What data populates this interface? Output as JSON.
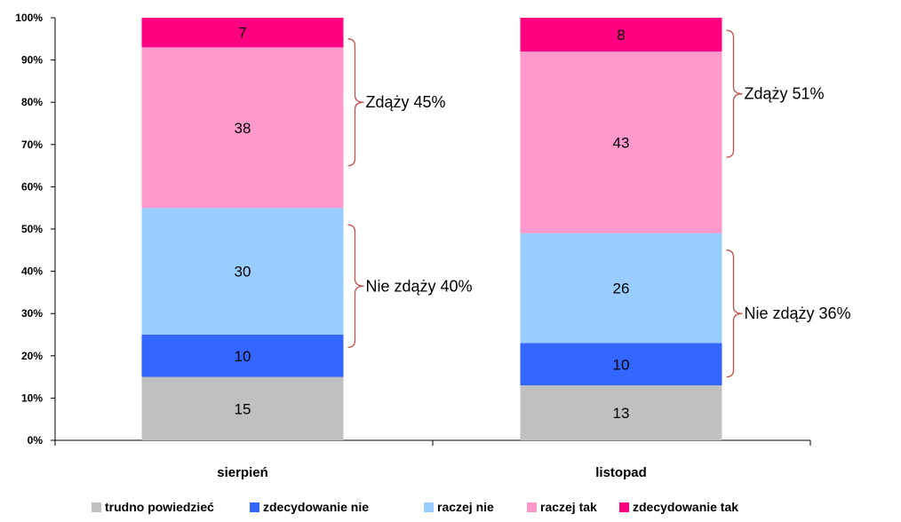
{
  "chart_data": {
    "type": "bar",
    "stacked": true,
    "percent_stacked": true,
    "categories": [
      "sierpień",
      "listopad"
    ],
    "series": [
      {
        "name": "trudno powiedzieć",
        "values": [
          15,
          13
        ],
        "color": "#c0c0c0"
      },
      {
        "name": "zdecydowanie nie",
        "values": [
          10,
          10
        ],
        "color": "#3366ff"
      },
      {
        "name": "raczej nie",
        "values": [
          30,
          26
        ],
        "color": "#99ccff"
      },
      {
        "name": "raczej tak",
        "values": [
          38,
          43
        ],
        "color": "#ff99cc"
      },
      {
        "name": "zdecydowanie tak",
        "values": [
          7,
          8
        ],
        "color": "#ff0080"
      }
    ],
    "segment_labels": [
      [
        "15",
        "10",
        "30",
        "38",
        "7"
      ],
      [
        "13",
        "10",
        "26",
        "43",
        "8"
      ]
    ],
    "ylim": [
      0,
      100
    ],
    "yticks": [
      "0%",
      "10%",
      "20%",
      "30%",
      "40%",
      "50%",
      "60%",
      "70%",
      "80%",
      "90%",
      "100%"
    ],
    "annotations": [
      {
        "category": 0,
        "text": "Zdąży 45%",
        "from": 65,
        "to": 95
      },
      {
        "category": 0,
        "text": "Nie zdąży 40%",
        "from": 22,
        "to": 51
      },
      {
        "category": 1,
        "text": "Zdąży 51%",
        "from": 67,
        "to": 97
      },
      {
        "category": 1,
        "text": "Nie zdąży 36%",
        "from": 15,
        "to": 45
      }
    ],
    "bracket_color": "#c0504d",
    "grid": false,
    "legend_position": "bottom"
  }
}
